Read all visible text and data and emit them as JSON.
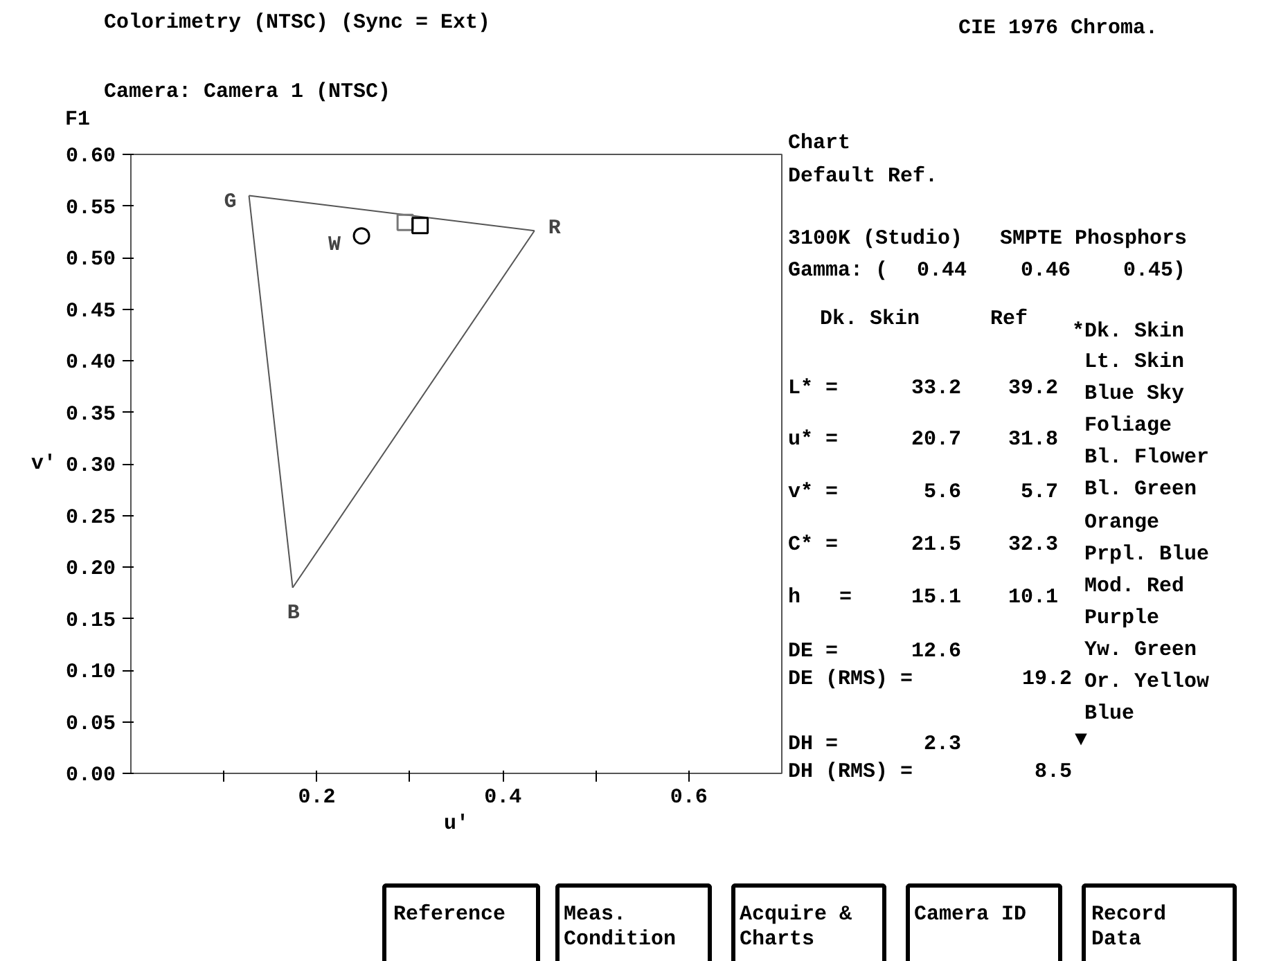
{
  "chart_data": {
    "type": "line",
    "title": "Colorimetry (NTSC) (Sync = Ext)",
    "subtitle": "Camera: Camera 1 (NTSC)",
    "xlabel": "u′",
    "ylabel": "v′",
    "xlim": [
      0,
      0.7
    ],
    "ylim": [
      0,
      0.6
    ],
    "xticks": [
      {
        "value": 0.1,
        "label": null
      },
      0.2,
      {
        "value": 0.3,
        "label": null
      },
      0.4,
      {
        "value": 0.5,
        "label": null
      },
      0.6
    ],
    "yticks": [
      {
        "value": 0,
        "label": "0.00"
      },
      {
        "value": 0.05,
        "label": "0.05"
      },
      {
        "value": 0.1,
        "label": "0.10"
      },
      {
        "value": 0.15,
        "label": "0.15"
      },
      {
        "value": 0.2,
        "label": "0.20"
      },
      {
        "value": 0.25,
        "label": "0.25"
      },
      {
        "value": 0.3,
        "label": "0.30"
      },
      {
        "value": 0.35,
        "label": "0.35"
      },
      {
        "value": 0.4,
        "label": "0.40"
      },
      {
        "value": 0.45,
        "label": "0.45"
      },
      {
        "value": 0.5,
        "label": "0.50"
      },
      {
        "value": 0.55,
        "label": "0.55"
      },
      {
        "value": 0.6,
        "label": "0.60"
      }
    ],
    "grid": false,
    "series": [
      {
        "color": "#555555",
        "x": [
          0.127,
          0.434
        ],
        "values": [
          0.56,
          0.526
        ]
      },
      {
        "color": "#555555",
        "x": [
          0.174,
          0.434
        ],
        "values": [
          0.18,
          0.526
        ]
      },
      {
        "color": "#555555",
        "x": [
          0.127,
          0.174
        ],
        "values": [
          0.56,
          0.18
        ]
      },
      {
        "type": "scatter",
        "marker": "circle",
        "color": "#000000",
        "x": [
          0.248
        ],
        "values": [
          0.521
        ]
      },
      {
        "type": "scatter",
        "marker": "square",
        "color": "#777777",
        "x": [
          0.295
        ],
        "values": [
          0.534
        ]
      },
      {
        "type": "scatter",
        "marker": "square",
        "color": "#000000",
        "x": [
          0.311
        ],
        "values": [
          0.531
        ]
      }
    ],
    "annotations": [
      {
        "text": "G",
        "x": 0.127,
        "y": 0.56
      },
      {
        "text": "R",
        "x": 0.434,
        "y": 0.526
      },
      {
        "text": "B",
        "x": 0.174,
        "y": 0.18
      },
      {
        "text": "W",
        "x": 0.248,
        "y": 0.521
      },
      "CIE 1976 Chroma.",
      "F1",
      "Chart",
      "Default Ref.",
      "3100K (Studio)",
      "SMPTE Phosphors",
      "Gamma: (",
      "0.44",
      "0.46",
      "0.45)",
      "Dk. Skin",
      "Ref",
      "L* =",
      "33.2",
      "39.2",
      "u* =",
      "20.7",
      "31.8",
      "v* =",
      "5.6",
      "5.7",
      "C* =",
      "21.5",
      "32.3",
      "h",
      "=",
      "15.1",
      "10.1",
      "DE =",
      "12.6",
      "DE (RMS) =",
      "19.2",
      "DH =",
      "2.3",
      "DH (RMS) =",
      "8.5",
      "*Dk. Skin",
      "Lt. Skin",
      "Blue Sky",
      "Foliage",
      "Bl. Flower",
      "Bl. Green",
      "Orange",
      "Prpl. Blue",
      "Mod. Red",
      "Purple",
      "Yw. Green",
      "Or. Yellow",
      "Blue",
      "▼",
      "Reference",
      "Meas.",
      "Condition",
      "Acquire &",
      "Charts",
      "Camera ID",
      "Record",
      "Data"
    ]
  }
}
